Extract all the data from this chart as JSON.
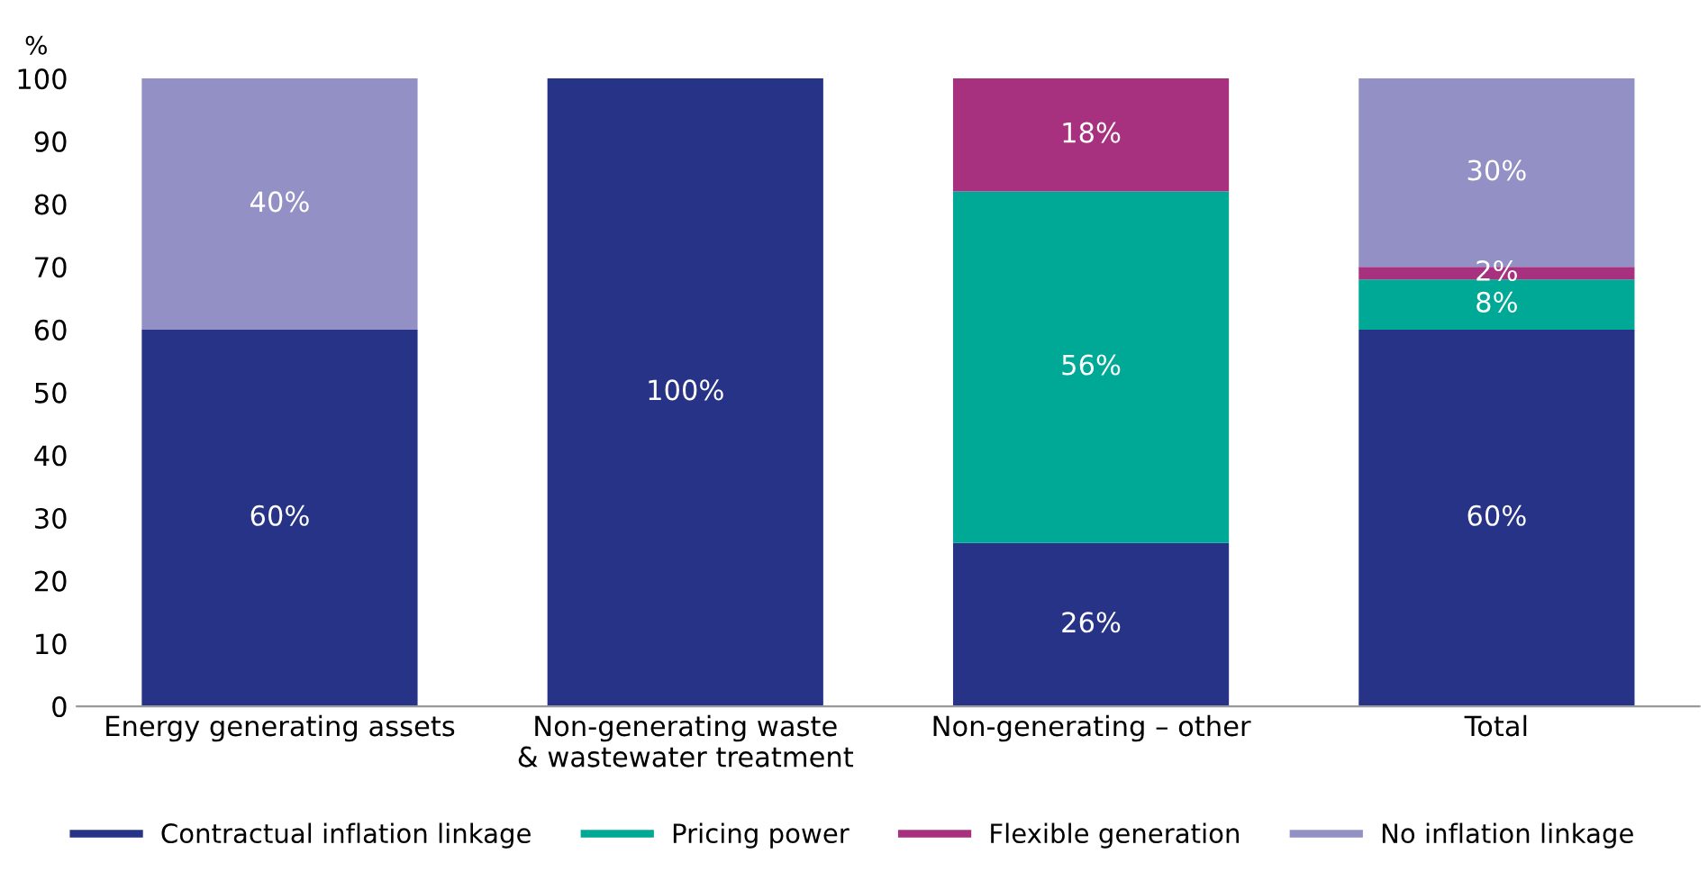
{
  "chart_data": {
    "type": "bar",
    "stacked": true,
    "ylabel": "%",
    "categories": [
      "Energy generating assets",
      "Non-generating waste\n& wastewater treatment",
      "Non-generating – other",
      "Total"
    ],
    "series": [
      {
        "name": "Contractual inflation linkage",
        "color": "#263387",
        "values": [
          60,
          100,
          26,
          60
        ],
        "value_labels": [
          "60%",
          "100%",
          "26%",
          "60%"
        ]
      },
      {
        "name": "Pricing power",
        "color": "#00a896",
        "values": [
          0,
          0,
          56,
          8
        ],
        "value_labels": [
          null,
          null,
          "56%",
          "8%"
        ]
      },
      {
        "name": "Flexible generation",
        "color": "#a8317f",
        "values": [
          0,
          0,
          18,
          2
        ],
        "value_labels": [
          null,
          null,
          "18%",
          "2%"
        ]
      },
      {
        "name": "No inflation linkage",
        "color": "#9290c4",
        "values": [
          40,
          0,
          0,
          30
        ],
        "value_labels": [
          "40%",
          null,
          null,
          "30%"
        ]
      }
    ],
    "ylim": [
      0,
      100
    ],
    "yticks": [
      0,
      10,
      20,
      30,
      40,
      50,
      60,
      70,
      80,
      90,
      100
    ],
    "grid": false,
    "legend": "bottom"
  }
}
